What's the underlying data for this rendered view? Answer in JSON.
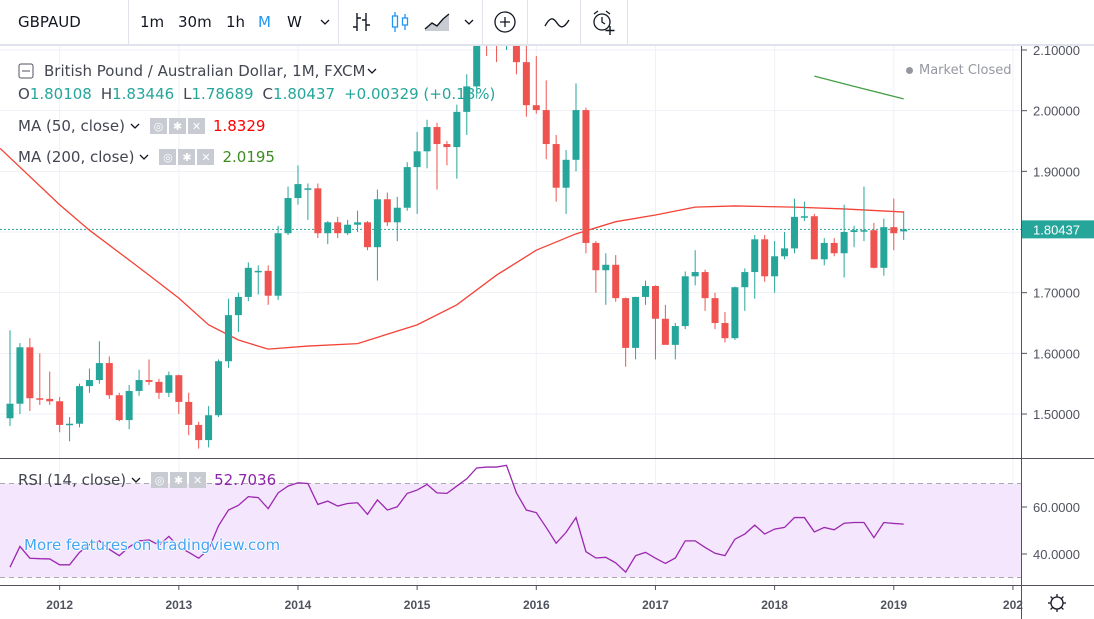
{
  "toolbar": {
    "symbol": "GBPAUD",
    "intervals": [
      "1m",
      "30m",
      "1h",
      "M",
      "W"
    ],
    "active_interval": "M",
    "icons": [
      "chevron-down-icon",
      "bar-chart-icon",
      "candles-icon",
      "area-chart-icon",
      "chevron-down-icon",
      "add-compare-icon",
      "indicators-icon",
      "alert-add-icon"
    ]
  },
  "legend": {
    "title": "British Pound / Australian Dollar, 1M, FXCM",
    "o_label": "O",
    "o": "1.80108",
    "h_label": "H",
    "h": "1.83446",
    "l_label": "L",
    "l": "1.78689",
    "c_label": "C",
    "c": "1.80437",
    "change": "+0.00329 (+0.18%)",
    "market_status": "Market Closed"
  },
  "studies": [
    {
      "name": "MA (50, close)",
      "value": "1.8329",
      "color": "#ff0000"
    },
    {
      "name": "MA (200, close)",
      "value": "2.0195",
      "color": "#3d8c1f"
    },
    {
      "name": "RSI (14, close)",
      "value": "52.7036",
      "color": "#8e24aa"
    }
  ],
  "watermark": "More features on tradingview.com",
  "colors": {
    "up": "#26a69a",
    "down": "#ef5350",
    "ma50": "#f44336",
    "ma200": "#43a047",
    "rsi": "#9c27b0",
    "rsi_band": "#f3e6fd",
    "accent": "#2196f3"
  },
  "chart_data": [
    {
      "type": "candlestick",
      "interval": "1M",
      "fields": [
        "month",
        "open",
        "high",
        "low",
        "close"
      ],
      "candles": [
        [
          "2011-08",
          1.493,
          1.638,
          1.48,
          1.517
        ],
        [
          "2011-09",
          1.517,
          1.617,
          1.5,
          1.61
        ],
        [
          "2011-10",
          1.61,
          1.625,
          1.505,
          1.526
        ],
        [
          "2011-11",
          1.526,
          1.6,
          1.515,
          1.525
        ],
        [
          "2011-12",
          1.525,
          1.57,
          1.515,
          1.521
        ],
        [
          "2012-01",
          1.521,
          1.528,
          1.47,
          1.482
        ],
        [
          "2012-02",
          1.484,
          1.495,
          1.455,
          1.484
        ],
        [
          "2012-03",
          1.484,
          1.55,
          1.478,
          1.546
        ],
        [
          "2012-04",
          1.546,
          1.575,
          1.535,
          1.556
        ],
        [
          "2012-05",
          1.556,
          1.62,
          1.55,
          1.584
        ],
        [
          "2012-06",
          1.584,
          1.595,
          1.525,
          1.531
        ],
        [
          "2012-07",
          1.531,
          1.535,
          1.488,
          1.49
        ],
        [
          "2012-08",
          1.49,
          1.548,
          1.475,
          1.538
        ],
        [
          "2012-09",
          1.538,
          1.573,
          1.53,
          1.556
        ],
        [
          "2012-10",
          1.556,
          1.59,
          1.548,
          1.553
        ],
        [
          "2012-11",
          1.553,
          1.558,
          1.525,
          1.535
        ],
        [
          "2012-12",
          1.535,
          1.57,
          1.528,
          1.564
        ],
        [
          "2013-01",
          1.564,
          1.565,
          1.5,
          1.52
        ],
        [
          "2013-02",
          1.52,
          1.535,
          1.465,
          1.482
        ],
        [
          "2013-03",
          1.482,
          1.487,
          1.443,
          1.457
        ],
        [
          "2013-04",
          1.457,
          1.513,
          1.445,
          1.498
        ],
        [
          "2013-05",
          1.498,
          1.59,
          1.495,
          1.587
        ],
        [
          "2013-06",
          1.587,
          1.69,
          1.576,
          1.663
        ],
        [
          "2013-07",
          1.663,
          1.7,
          1.635,
          1.693
        ],
        [
          "2013-08",
          1.693,
          1.75,
          1.686,
          1.741
        ],
        [
          "2013-09",
          1.736,
          1.745,
          1.697,
          1.736
        ],
        [
          "2013-10",
          1.736,
          1.745,
          1.68,
          1.695
        ],
        [
          "2013-11",
          1.695,
          1.81,
          1.688,
          1.798
        ],
        [
          "2013-12",
          1.798,
          1.875,
          1.795,
          1.856
        ],
        [
          "2014-01",
          1.856,
          1.91,
          1.845,
          1.879
        ],
        [
          "2014-02",
          1.872,
          1.88,
          1.82,
          1.872
        ],
        [
          "2014-03",
          1.872,
          1.88,
          1.79,
          1.798
        ],
        [
          "2014-04",
          1.798,
          1.818,
          1.78,
          1.816
        ],
        [
          "2014-05",
          1.816,
          1.825,
          1.79,
          1.798
        ],
        [
          "2014-06",
          1.798,
          1.82,
          1.795,
          1.812
        ],
        [
          "2014-07",
          1.812,
          1.835,
          1.8,
          1.816
        ],
        [
          "2014-08",
          1.816,
          1.818,
          1.77,
          1.775
        ],
        [
          "2014-09",
          1.775,
          1.87,
          1.72,
          1.854
        ],
        [
          "2014-10",
          1.854,
          1.865,
          1.81,
          1.816
        ],
        [
          "2014-11",
          1.816,
          1.858,
          1.785,
          1.84
        ],
        [
          "2014-12",
          1.84,
          1.915,
          1.835,
          1.907
        ],
        [
          "2015-01",
          1.907,
          1.965,
          1.83,
          1.933
        ],
        [
          "2015-02",
          1.933,
          1.985,
          1.905,
          1.973
        ],
        [
          "2015-03",
          1.973,
          1.98,
          1.87,
          1.945
        ],
        [
          "2015-04",
          1.945,
          1.95,
          1.91,
          1.94
        ],
        [
          "2015-05",
          1.94,
          2.01,
          1.888,
          1.998
        ],
        [
          "2015-06",
          1.998,
          2.06,
          1.96,
          2.04
        ],
        [
          "2015-07",
          2.04,
          2.14,
          2.02,
          2.13
        ],
        [
          "2015-08",
          2.13,
          2.15,
          2.09,
          2.125
        ],
        [
          "2015-09",
          2.125,
          2.15,
          2.08,
          2.12
        ],
        [
          "2015-10",
          2.11,
          2.15,
          2.1,
          2.14
        ],
        [
          "2015-11",
          2.14,
          2.15,
          2.06,
          2.08
        ],
        [
          "2015-12",
          2.08,
          2.11,
          1.99,
          2.009
        ],
        [
          "2016-01",
          2.009,
          2.09,
          1.995,
          2.001
        ],
        [
          "2016-02",
          2.001,
          2.05,
          1.92,
          1.945
        ],
        [
          "2016-03",
          1.945,
          1.96,
          1.85,
          1.873
        ],
        [
          "2016-04",
          1.873,
          1.935,
          1.83,
          1.919
        ],
        [
          "2016-05",
          1.919,
          2.045,
          1.9,
          2.001
        ],
        [
          "2016-06",
          2.001,
          2.005,
          1.765,
          1.782
        ],
        [
          "2016-07",
          1.782,
          1.785,
          1.7,
          1.737
        ],
        [
          "2016-08",
          1.737,
          1.765,
          1.68,
          1.746
        ],
        [
          "2016-09",
          1.746,
          1.762,
          1.685,
          1.691
        ],
        [
          "2016-10",
          1.691,
          1.692,
          1.578,
          1.609
        ],
        [
          "2016-11",
          1.609,
          1.693,
          1.59,
          1.693
        ],
        [
          "2016-12",
          1.693,
          1.72,
          1.68,
          1.711
        ],
        [
          "2017-01",
          1.711,
          1.712,
          1.59,
          1.657
        ],
        [
          "2017-02",
          1.657,
          1.68,
          1.62,
          1.614
        ],
        [
          "2017-03",
          1.614,
          1.65,
          1.59,
          1.645
        ],
        [
          "2017-04",
          1.645,
          1.735,
          1.64,
          1.727
        ],
        [
          "2017-05",
          1.727,
          1.77,
          1.712,
          1.734
        ],
        [
          "2017-06",
          1.734,
          1.738,
          1.67,
          1.691
        ],
        [
          "2017-07",
          1.691,
          1.7,
          1.64,
          1.65
        ],
        [
          "2017-08",
          1.65,
          1.668,
          1.618,
          1.625
        ],
        [
          "2017-09",
          1.625,
          1.71,
          1.622,
          1.709
        ],
        [
          "2017-10",
          1.709,
          1.74,
          1.67,
          1.734
        ],
        [
          "2017-11",
          1.734,
          1.795,
          1.69,
          1.788
        ],
        [
          "2017-12",
          1.788,
          1.795,
          1.718,
          1.727
        ],
        [
          "2018-01",
          1.727,
          1.785,
          1.7,
          1.76
        ],
        [
          "2018-02",
          1.76,
          1.8,
          1.755,
          1.773
        ],
        [
          "2018-03",
          1.773,
          1.855,
          1.765,
          1.825
        ],
        [
          "2018-04",
          1.825,
          1.85,
          1.818,
          1.826
        ],
        [
          "2018-05",
          1.826,
          1.83,
          1.755,
          1.755
        ],
        [
          "2018-06",
          1.755,
          1.79,
          1.745,
          1.782
        ],
        [
          "2018-07",
          1.782,
          1.79,
          1.76,
          1.765
        ],
        [
          "2018-08",
          1.765,
          1.845,
          1.725,
          1.8
        ],
        [
          "2018-09",
          1.8,
          1.81,
          1.775,
          1.803
        ],
        [
          "2018-10",
          1.803,
          1.875,
          1.785,
          1.803
        ],
        [
          "2018-11",
          1.803,
          1.815,
          1.74,
          1.741
        ],
        [
          "2018-12",
          1.741,
          1.822,
          1.728,
          1.808
        ],
        [
          "2019-01",
          1.808,
          1.855,
          1.77,
          1.798
        ],
        [
          "2019-02",
          1.80108,
          1.83446,
          1.78689,
          1.80437
        ]
      ],
      "ma50": [
        [
          "2011-07",
          1.938
        ],
        [
          "2012-01",
          1.845
        ],
        [
          "2012-04",
          1.803
        ],
        [
          "2012-10",
          1.729
        ],
        [
          "2013-01",
          1.691
        ],
        [
          "2013-04",
          1.647
        ],
        [
          "2013-07",
          1.622
        ],
        [
          "2013-10",
          1.607
        ],
        [
          "2014-02",
          1.612
        ],
        [
          "2014-07",
          1.616
        ],
        [
          "2015-01",
          1.647
        ],
        [
          "2015-05",
          1.68
        ],
        [
          "2015-09",
          1.729
        ],
        [
          "2016-01",
          1.77
        ],
        [
          "2016-05",
          1.797
        ],
        [
          "2016-09",
          1.817
        ],
        [
          "2017-01",
          1.828
        ],
        [
          "2017-05",
          1.841
        ],
        [
          "2017-09",
          1.843
        ],
        [
          "2018-03",
          1.841
        ],
        [
          "2018-08",
          1.838
        ],
        [
          "2019-02",
          1.8329
        ]
      ],
      "ma200": [
        [
          "2018-05",
          2.057
        ],
        [
          "2018-09",
          2.04
        ],
        [
          "2019-02",
          2.0195
        ]
      ],
      "last_price": "1.80437",
      "y_ticks": [
        "2.10000",
        "2.00000",
        "1.90000",
        "1.70000",
        "1.60000",
        "1.50000"
      ],
      "y_tick_values": [
        2.1,
        2.0,
        1.9,
        1.7,
        1.6,
        1.5
      ],
      "ylim": [
        1.43,
        2.11
      ],
      "x_ticks": [
        "2012",
        "2013",
        "2014",
        "2015",
        "2016",
        "2017",
        "2018",
        "2019",
        "202"
      ],
      "x_tick_months": [
        "2012-01",
        "2013-01",
        "2014-01",
        "2015-01",
        "2016-01",
        "2017-01",
        "2018-01",
        "2019-01",
        "2020-01"
      ],
      "grid": true
    },
    {
      "type": "line",
      "name": "RSI (14, close)",
      "start_month": "2011-08",
      "values": [
        34.4,
        43.2,
        38.2,
        38,
        37.9,
        35.4,
        35.4,
        40.7,
        44,
        45.6,
        42,
        39.3,
        43,
        45.6,
        46,
        43.8,
        47.5,
        43,
        40.7,
        38.2,
        42,
        52,
        58.7,
        60.7,
        64.4,
        64,
        59.3,
        66,
        68.9,
        70.3,
        70,
        61.1,
        62.5,
        60.4,
        61.5,
        61.8,
        56.9,
        63,
        58.7,
        60.1,
        65.8,
        67.2,
        69.6,
        66,
        65.8,
        68.9,
        72,
        76.6,
        77,
        77,
        77.7,
        66,
        58.7,
        57.6,
        51.3,
        44.6,
        49.2,
        55.5,
        41,
        38.3,
        38.6,
        36.2,
        32.3,
        39.3,
        40.7,
        38.2,
        36,
        38.3,
        45.6,
        45.6,
        42.8,
        40.3,
        39.3,
        46.3,
        48.5,
        52.3,
        48.5,
        50.6,
        51.3,
        55.5,
        55.5,
        49.4,
        51.3,
        50.3,
        53.1,
        53.4,
        53.4,
        47,
        53.4,
        53,
        52.7036
      ],
      "y_ticks": [
        "60.0000",
        "40.0000"
      ],
      "y_tick_values": [
        60,
        40
      ],
      "bands": [
        30,
        70
      ],
      "grid": true
    }
  ]
}
